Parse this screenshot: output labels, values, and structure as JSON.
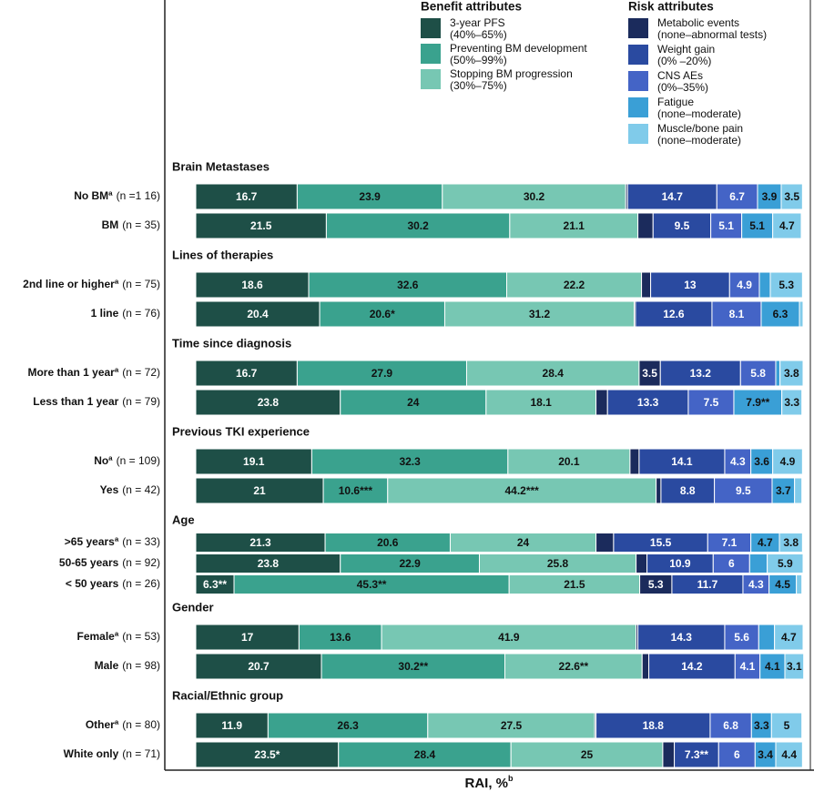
{
  "chart_data": {
    "type": "stacked-bar-horizontal",
    "x_label": "RAI, %",
    "x_label_sup": "b",
    "xlim": [
      0,
      100
    ],
    "legend": [
      {
        "title": "Benefit attributes",
        "items": [
          {
            "name": "3-year PFS",
            "range": "(40%–65%)",
            "color": "#1e4f47"
          },
          {
            "name": "Preventing BM development",
            "range": "(50%–99%)",
            "color": "#3aa28e"
          },
          {
            "name": "Stopping BM progression",
            "range": "(30%–75%)",
            "color": "#77c7b3"
          }
        ]
      },
      {
        "title": "Risk attributes",
        "items": [
          {
            "name": "Metabolic events",
            "range": "(none–abnormal tests)",
            "color": "#1b2b5c"
          },
          {
            "name": "Weight gain",
            "range": "(0% –20%)",
            "color": "#2a4aa0"
          },
          {
            "name": "CNS AEs",
            "range": "(0%–35%)",
            "color": "#4464c6"
          },
          {
            "name": "Fatigue",
            "range": "(none–moderate)",
            "color": "#3a9fd6"
          },
          {
            "name": "Muscle/bone pain",
            "range": "(none–moderate)",
            "color": "#80cbea"
          }
        ]
      }
    ],
    "groups": [
      {
        "title": "Brain Metastases",
        "categories": [
          "No BMª",
          "BM"
        ],
        "n_labels": [
          "(n =1 16)",
          "(n = 35)"
        ],
        "values": [
          [
            16.7,
            23.9,
            30.2,
            0.3,
            14.7,
            6.7,
            3.9,
            3.5
          ],
          [
            21.5,
            30.2,
            21.1,
            2.5,
            9.5,
            5.1,
            5.1,
            4.7
          ]
        ],
        "value_labels": [
          [
            null,
            null,
            null,
            null,
            null,
            null,
            null,
            null
          ],
          [
            null,
            null,
            null,
            null,
            null,
            null,
            null,
            null
          ]
        ]
      },
      {
        "title": "Lines of therapies",
        "categories": [
          "2nd line or higherª",
          "1 line"
        ],
        "n_labels": [
          "(n = 75)",
          "(n = 76)"
        ],
        "values": [
          [
            18.6,
            32.6,
            22.2,
            1.5,
            13,
            4.9,
            1.8,
            5.3
          ],
          [
            20.4,
            20.6,
            31.2,
            0.2,
            12.6,
            8.1,
            6.3,
            0.6
          ]
        ],
        "value_labels": [
          [
            null,
            null,
            null,
            null,
            null,
            null,
            null,
            null
          ],
          [
            null,
            "20.6*",
            null,
            null,
            null,
            null,
            null,
            null
          ]
        ]
      },
      {
        "title": "Time since diagnosis",
        "categories": [
          "More than 1 yearª",
          "Less than 1 year"
        ],
        "n_labels": [
          "(n = 72)",
          "(n = 79)"
        ],
        "values": [
          [
            16.7,
            27.9,
            28.4,
            3.5,
            13.2,
            5.8,
            0.7,
            3.8
          ],
          [
            23.8,
            24,
            18.1,
            1.9,
            13.3,
            7.5,
            7.9,
            3.3
          ]
        ],
        "value_labels": [
          [
            null,
            null,
            null,
            null,
            null,
            null,
            null,
            null
          ],
          [
            null,
            null,
            null,
            null,
            null,
            null,
            "7.9**",
            null
          ]
        ]
      },
      {
        "title": "Previous TKI experience",
        "categories": [
          "Noª",
          "Yes"
        ],
        "n_labels": [
          "(n = 109)",
          "(n = 42)"
        ],
        "values": [
          [
            19.1,
            32.3,
            20.1,
            1.5,
            14.1,
            4.3,
            3.6,
            4.9
          ],
          [
            21,
            10.6,
            44.2,
            0.8,
            8.8,
            9.5,
            3.7,
            1.2
          ]
        ],
        "value_labels": [
          [
            null,
            null,
            null,
            null,
            null,
            null,
            null,
            null
          ],
          [
            null,
            "10.6***",
            "44.2***",
            null,
            null,
            null,
            null,
            null
          ]
        ]
      },
      {
        "title": "Age",
        "categories": [
          ">65 yearsª",
          "50-65 years",
          "< 50 years"
        ],
        "n_labels": [
          "(n = 33)",
          "(n = 92)",
          "(n = 26)"
        ],
        "values": [
          [
            21.3,
            20.6,
            24,
            2.9,
            15.5,
            7.1,
            4.7,
            3.8
          ],
          [
            23.8,
            22.9,
            25.8,
            1.8,
            10.9,
            6,
            2.9,
            5.9
          ],
          [
            6.3,
            45.3,
            21.5,
            5.3,
            11.7,
            4.3,
            4.5,
            0.9
          ]
        ],
        "value_labels": [
          [
            null,
            null,
            null,
            null,
            null,
            null,
            null,
            null
          ],
          [
            null,
            null,
            null,
            null,
            null,
            null,
            null,
            null
          ],
          [
            "6.3**",
            "45.3**",
            null,
            null,
            null,
            null,
            null,
            null
          ]
        ]
      },
      {
        "title": "Gender",
        "categories": [
          "Femaleª",
          "Male"
        ],
        "n_labels": [
          "(n = 53)",
          "(n = 98)"
        ],
        "values": [
          [
            17,
            13.6,
            41.9,
            0.3,
            14.3,
            5.6,
            2.6,
            4.7
          ],
          [
            20.7,
            30.2,
            22.6,
            1.1,
            14.2,
            4.1,
            4.1,
            3.1
          ]
        ],
        "value_labels": [
          [
            null,
            null,
            null,
            null,
            null,
            null,
            null,
            null
          ],
          [
            null,
            "30.2**",
            "22.6**",
            null,
            null,
            null,
            null,
            null
          ]
        ]
      },
      {
        "title": "Racial/Ethnic group",
        "categories": [
          "Otherª",
          "White only"
        ],
        "n_labels": [
          "(n = 80)",
          "(n = 71)"
        ],
        "values": [
          [
            11.9,
            26.3,
            27.5,
            0.2,
            18.8,
            6.8,
            3.3,
            5
          ],
          [
            23.5,
            28.4,
            25,
            1.9,
            7.3,
            6,
            3.4,
            4.4
          ]
        ],
        "value_labels": [
          [
            null,
            null,
            null,
            null,
            null,
            null,
            null,
            null
          ],
          [
            "23.5*",
            null,
            null,
            null,
            "7.3**",
            null,
            null,
            null
          ]
        ]
      }
    ]
  }
}
